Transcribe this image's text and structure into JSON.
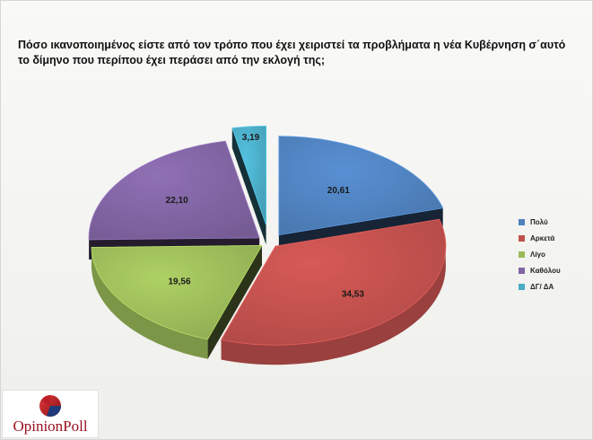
{
  "title": "Πόσο ικανοποιημένος είστε από τον τρόπο που έχει χειριστεί τα προβλήματα η νέα Κυβέρνηση σ΄αυτό το δίμηνο που περίπου έχει περάσει από την εκλογή της;",
  "logo": {
    "text": "OpinionPoll"
  },
  "colors": {
    "Πολύ": "#4f81bd",
    "Αρκετά": "#c0504d",
    "Λίγο": "#9bbb59",
    "Καθόλου": "#8064a2",
    "ΔΓ/ ΔΑ": "#4bacc6"
  },
  "chart_data": {
    "type": "pie",
    "style": "3d-exploded",
    "categories": [
      "Πολύ",
      "Αρκετά",
      "Λίγο",
      "Καθόλου",
      "ΔΓ/ ΔΑ"
    ],
    "values": [
      20.61,
      34.53,
      19.56,
      22.1,
      3.19
    ],
    "data_labels": [
      "20,61",
      "34,53",
      "19,56",
      "22,10",
      "3,19"
    ],
    "legend": {
      "placement": "right",
      "entries": [
        "Πολύ",
        "Αρκετά",
        "Λίγο",
        "Καθόλου",
        "ΔΓ/ ΔΑ"
      ]
    }
  }
}
